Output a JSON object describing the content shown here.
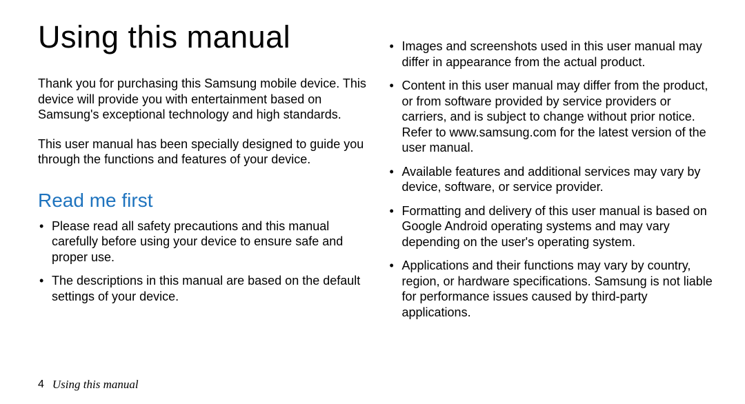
{
  "title": "Using this manual",
  "intro": {
    "p1": "Thank you for purchasing this Samsung mobile device. This device will provide you with entertainment based on Samsung's exceptional technology and high standards.",
    "p2": "This user manual has been specially designed to guide you through the functions and features of your device."
  },
  "section_heading": "Read me first",
  "left_bullets": [
    "Please read all safety precautions and this manual carefully before using your device to ensure safe and proper use.",
    "The descriptions in this manual are based on the default settings of your device."
  ],
  "right_bullets": [
    "Images and screenshots used in this user manual may differ in appearance from the actual product.",
    "Content in this user manual may differ from the product, or from software provided by service providers or carriers, and is subject to change without prior notice. Refer to www.samsung.com for the latest version of the user manual.",
    "Available features and additional services may vary by device, software, or service provider.",
    "Formatting and delivery of this user manual is based on Google Android operating systems and may vary depending on the user's operating system.",
    "Applications and their functions may vary by country, region, or hardware specifications. Samsung is not liable for performance issues caused by third-party applications."
  ],
  "footer": {
    "page_num": "4",
    "title": "Using this manual"
  },
  "colors": {
    "heading_blue": "#1e73be",
    "text": "#000000",
    "background": "#ffffff"
  }
}
